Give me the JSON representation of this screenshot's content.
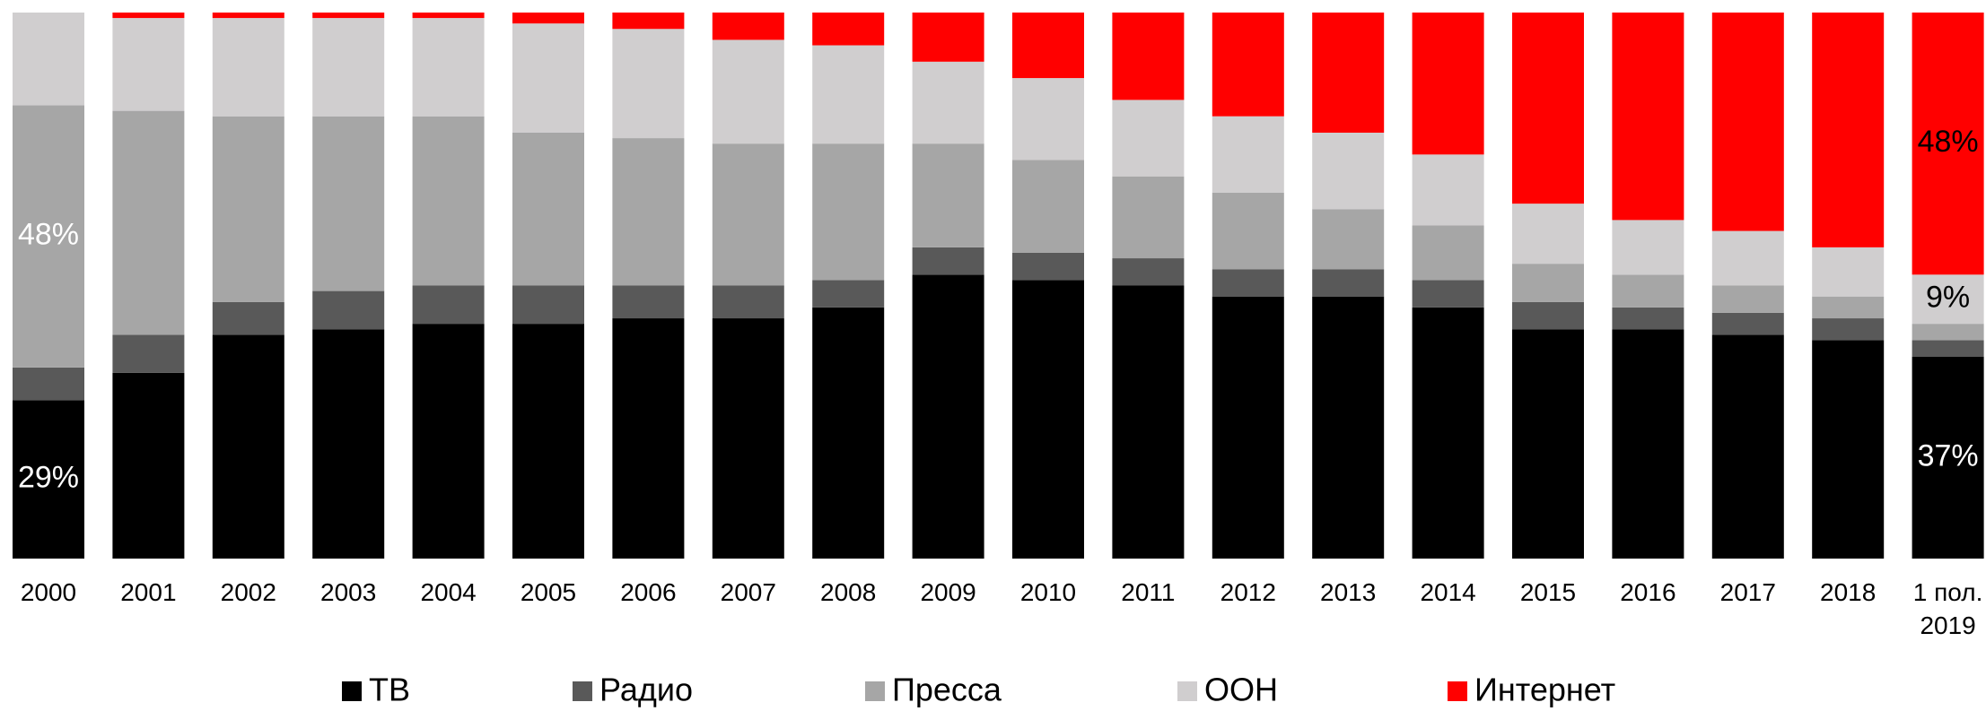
{
  "chart_data": {
    "type": "stacked_bar_percent",
    "categories": [
      "2000",
      "2001",
      "2002",
      "2003",
      "2004",
      "2005",
      "2006",
      "2007",
      "2008",
      "2009",
      "2010",
      "2011",
      "2012",
      "2013",
      "2014",
      "2015",
      "2016",
      "2017",
      "2018",
      "1 пол. 2019"
    ],
    "ylim": [
      0,
      100
    ],
    "legend": "bottom",
    "series": [
      {
        "name": "ТВ",
        "color": "#000000",
        "values": [
          29,
          34,
          41,
          42,
          43,
          43,
          44,
          44,
          46,
          52,
          51,
          50,
          48,
          48,
          46,
          42,
          42,
          41,
          40,
          37
        ],
        "value_labels": [
          "29%",
          null,
          null,
          null,
          null,
          null,
          null,
          null,
          null,
          null,
          null,
          null,
          null,
          null,
          null,
          null,
          null,
          null,
          null,
          "37%"
        ]
      },
      {
        "name": "Радио",
        "color": "#595959",
        "values": [
          6,
          7,
          6,
          7,
          7,
          7,
          6,
          6,
          5,
          5,
          5,
          5,
          5,
          5,
          5,
          5,
          4,
          4,
          4,
          3
        ]
      },
      {
        "name": "Пресса",
        "color": "#a6a6a6",
        "values": [
          48,
          41,
          34,
          32,
          31,
          28,
          27,
          26,
          25,
          19,
          17,
          15,
          14,
          11,
          10,
          7,
          6,
          5,
          4,
          3
        ],
        "value_labels": [
          "48%",
          null,
          null,
          null,
          null,
          null,
          null,
          null,
          null,
          null,
          null,
          null,
          null,
          null,
          null,
          null,
          null,
          null,
          null,
          null
        ]
      },
      {
        "name": "ООН",
        "color": "#d0cecf",
        "values": [
          17,
          17,
          18,
          18,
          18,
          20,
          20,
          19,
          18,
          15,
          15,
          14,
          14,
          14,
          13,
          11,
          10,
          10,
          9,
          9
        ],
        "value_labels": [
          null,
          null,
          null,
          null,
          null,
          null,
          null,
          null,
          null,
          null,
          null,
          null,
          null,
          null,
          null,
          null,
          null,
          null,
          null,
          "9%"
        ]
      },
      {
        "name": "Интернет",
        "color": "#ff0000",
        "values": [
          0,
          1,
          1,
          1,
          1,
          2,
          3,
          5,
          6,
          9,
          12,
          16,
          19,
          22,
          26,
          35,
          38,
          40,
          43,
          48
        ],
        "value_labels": [
          null,
          null,
          null,
          null,
          null,
          null,
          null,
          null,
          null,
          null,
          null,
          null,
          null,
          null,
          null,
          null,
          null,
          null,
          null,
          "48%"
        ]
      }
    ]
  }
}
